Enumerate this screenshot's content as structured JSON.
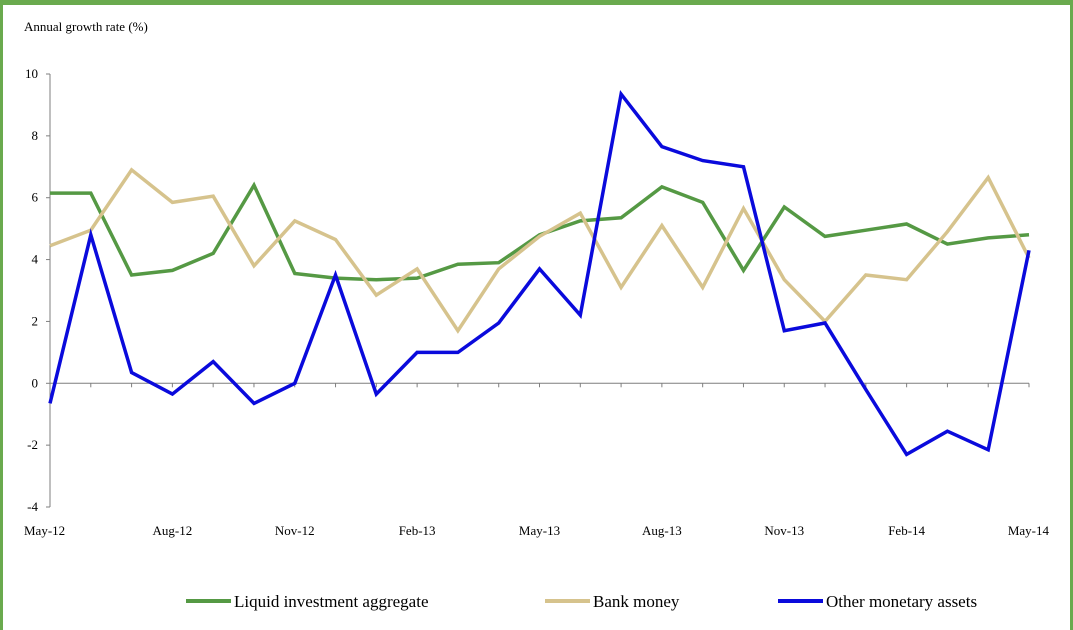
{
  "chart_data": {
    "type": "line",
    "title": "",
    "ylabel": "Annual growth rate (%)",
    "xlabel": "",
    "ylim": [
      -4,
      10
    ],
    "yticks": [
      -4,
      -2,
      0,
      2,
      4,
      6,
      8,
      10
    ],
    "x": [
      "May-12",
      "Jun-12",
      "Jul-12",
      "Aug-12",
      "Sep-12",
      "Oct-12",
      "Nov-12",
      "Dec-12",
      "Jan-13",
      "Feb-13",
      "Mar-13",
      "Apr-13",
      "May-13",
      "Jun-13",
      "Jul-13",
      "Aug-13",
      "Sep-13",
      "Oct-13",
      "Nov-13",
      "Dec-13",
      "Jan-14",
      "Feb-14",
      "Mar-14",
      "Apr-14",
      "May-14"
    ],
    "xtick_labels": [
      "May-12",
      "",
      "",
      "Aug-12",
      "",
      "",
      "Nov-12",
      "",
      "",
      "Feb-13",
      "",
      "",
      "May-13",
      "",
      "",
      "Aug-13",
      "",
      "",
      "Nov-13",
      "",
      "",
      "Feb-14",
      "",
      "",
      "May-14"
    ],
    "grid": false,
    "legend_position": "bottom",
    "series": [
      {
        "name": "Liquid investment aggregate",
        "color": "#559944",
        "values": [
          6.15,
          6.15,
          3.5,
          3.65,
          4.2,
          6.4,
          3.55,
          3.4,
          3.35,
          3.4,
          3.85,
          3.9,
          4.8,
          5.25,
          5.35,
          6.35,
          5.85,
          3.65,
          5.7,
          4.75,
          4.95,
          5.15,
          4.5,
          4.7,
          4.8
        ]
      },
      {
        "name": "Bank money",
        "color": "#d6c38d",
        "values": [
          4.45,
          4.95,
          6.9,
          5.85,
          6.05,
          3.8,
          5.25,
          4.65,
          2.85,
          3.7,
          1.7,
          3.7,
          4.75,
          5.5,
          3.1,
          5.1,
          3.1,
          5.65,
          3.35,
          2.0,
          3.5,
          3.35,
          4.9,
          6.65,
          4.05
        ]
      },
      {
        "name": "Other monetary assets",
        "color": "#0a0adc",
        "values": [
          -0.65,
          4.8,
          0.35,
          -0.35,
          0.7,
          -0.65,
          0.0,
          3.5,
          -0.35,
          1.0,
          1.0,
          1.95,
          3.7,
          2.2,
          9.35,
          7.65,
          7.2,
          7.0,
          1.7,
          1.95,
          -0.2,
          -2.3,
          -1.55,
          -2.15,
          4.3
        ]
      }
    ]
  }
}
